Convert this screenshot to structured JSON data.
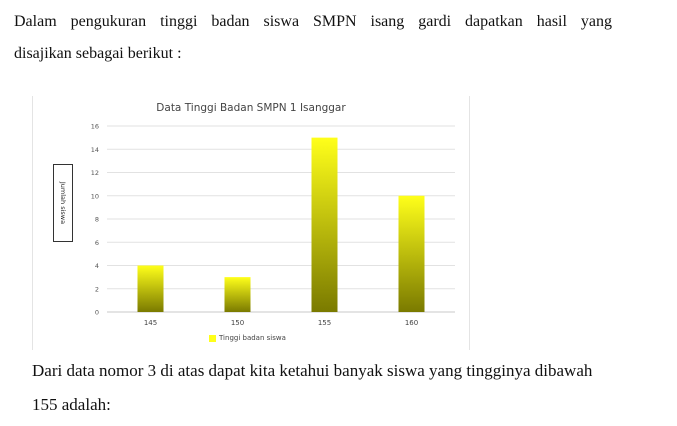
{
  "intro": {
    "line1": "Dalam pengukuran tinggi badan siswa SMPN isang gardi dapatkan hasil yang",
    "line2": "disajikan sebagai berikut :"
  },
  "question": {
    "line1": "Dari data nomor 3 di atas dapat kita ketahui banyak siswa yang tingginya dibawah",
    "line2": "155 adalah:"
  },
  "chart_data": {
    "type": "bar",
    "title": "Data Tinggi Badan SMPN 1 Isanggar",
    "xlabel": "",
    "ylabel": "Jumlah siswa",
    "categories": [
      "145",
      "150",
      "155",
      "160"
    ],
    "series": [
      {
        "name": "Tinggi badan siswa",
        "values": [
          4,
          3,
          15,
          10
        ]
      }
    ],
    "ylim": [
      0,
      16
    ],
    "yticks": [
      0,
      2,
      4,
      6,
      8,
      10,
      12,
      14,
      16
    ],
    "grid": true,
    "legend": "bottom",
    "bar_color_top": "#ffff1a",
    "bar_color_bottom": "#7a7a00"
  }
}
